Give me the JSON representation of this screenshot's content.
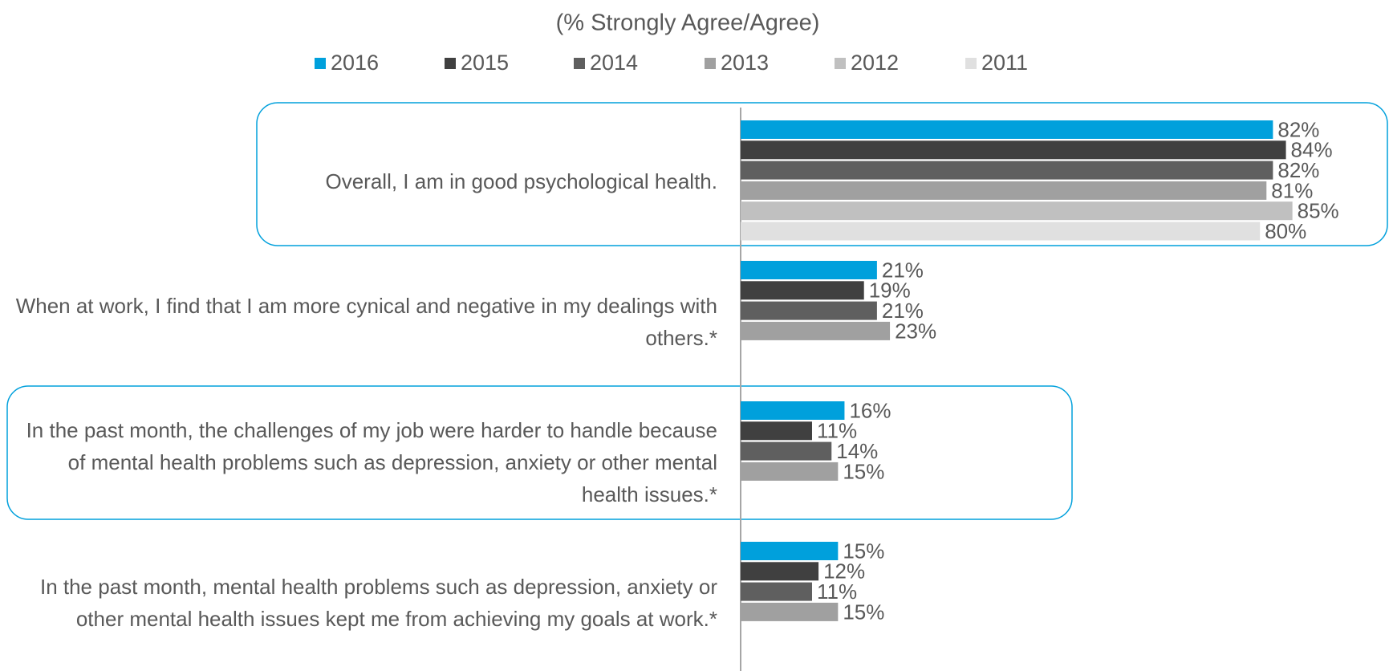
{
  "chart_data": {
    "type": "bar",
    "orientation": "horizontal",
    "title": "(% Strongly Agree/Agree)",
    "categories": [
      "Overall, I am in good psychological health.",
      "When at work, I find that I am more cynical and negative in my dealings with others.*",
      "In the past month, the challenges of my job were harder to handle because of mental health problems such as depression, anxiety or other mental health issues.*",
      "In the past month, mental health problems such as depression, anxiety or other mental health issues kept me from achieving my goals at work.*"
    ],
    "series": [
      {
        "name": "2016",
        "color": "#00a0dc",
        "values": [
          82,
          21,
          16,
          15
        ],
        "value_labels": [
          "82%",
          "21%",
          "16%",
          "15%"
        ]
      },
      {
        "name": "2015",
        "color": "#404040",
        "values": [
          84,
          19,
          11,
          12
        ],
        "value_labels": [
          "84%",
          "19%",
          "11%",
          "12%"
        ]
      },
      {
        "name": "2014",
        "color": "#5f5f5f",
        "values": [
          82,
          21,
          14,
          11
        ],
        "value_labels": [
          "82%",
          "21%",
          "14%",
          "11%"
        ]
      },
      {
        "name": "2013",
        "color": "#a0a0a0",
        "values": [
          81,
          23,
          15,
          15
        ],
        "value_labels": [
          "81%",
          "23%",
          "15%",
          "15%"
        ]
      },
      {
        "name": "2012",
        "color": "#c0c0c0",
        "values": [
          85,
          null,
          null,
          null
        ],
        "value_labels": [
          "85%",
          null,
          null,
          null
        ]
      },
      {
        "name": "2011",
        "color": "#e0e0e0",
        "values": [
          80,
          null,
          null,
          null
        ],
        "value_labels": [
          "80%",
          null,
          null,
          null
        ]
      }
    ],
    "legend": "top"
  }
}
